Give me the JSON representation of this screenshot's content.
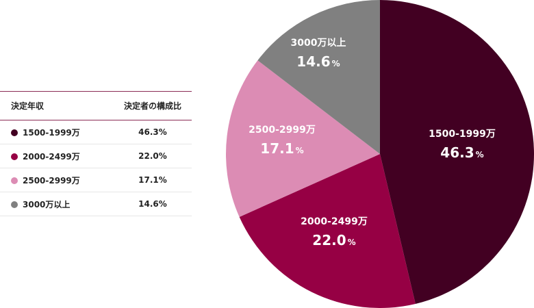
{
  "table": {
    "header_label": "決定年収",
    "header_share": "決定者の構成比"
  },
  "colors": {
    "s1": "#420022",
    "s2": "#960044",
    "s3": "#dc8cb4",
    "s4": "#808080",
    "header_rule": "#8a2a55"
  },
  "chart_data": {
    "type": "pie",
    "title": "",
    "start_angle_deg": 0,
    "direction": "clockwise",
    "unit": "%",
    "slices": [
      {
        "label": "1500-1999万",
        "value": 46.3,
        "value_text": "46.3",
        "table_text": "46.3%",
        "color": "#420022"
      },
      {
        "label": "2000-2499万",
        "value": 22.0,
        "value_text": "22.0",
        "table_text": "22.0%",
        "color": "#960044"
      },
      {
        "label": "2500-2999万",
        "value": 17.1,
        "value_text": "17.1",
        "table_text": "17.1%",
        "color": "#dc8cb4"
      },
      {
        "label": "3000万以上",
        "value": 14.6,
        "value_text": "14.6",
        "table_text": "14.6%",
        "color": "#808080"
      }
    ]
  }
}
